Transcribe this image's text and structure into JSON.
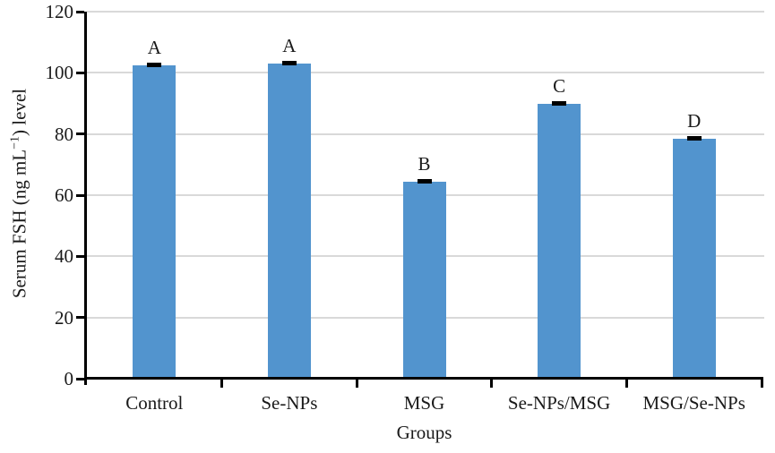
{
  "figure": {
    "ylabel_prefix": "Serum FSH (ng mL",
    "ylabel_sup": "−1",
    "ylabel_suffix": ") level",
    "xlabel": "Groups"
  },
  "chart_data": {
    "type": "bar",
    "title": "",
    "categories": [
      "Control",
      "Se-NPs",
      "MSG",
      "Se-NPs/MSG",
      "MSG/Se-NPs"
    ],
    "values": [
      102.5,
      103,
      64.5,
      90,
      78.5
    ],
    "errors": [
      1,
      1,
      1,
      1,
      1
    ],
    "bar_labels": [
      "A",
      "A",
      "B",
      "C",
      "D"
    ],
    "xlabel": "Groups",
    "ylabel": "Serum FSH (ng mL−1) level",
    "ylim": [
      0,
      120
    ],
    "yticks": [
      0,
      20,
      40,
      60,
      80,
      100,
      120
    ],
    "grid": true,
    "legend": false,
    "bar_color": "#5294CE",
    "gridline_color": "#D9D9D9",
    "axis_color": "#000000",
    "text_color": "#1A1A1A"
  }
}
